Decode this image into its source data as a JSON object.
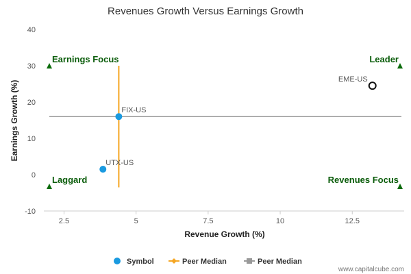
{
  "chart_data": {
    "type": "scatter",
    "title": "Revenues Growth Versus Earnings Growth",
    "xlabel": "Revenue Growth (%)",
    "ylabel": "Earnings Growth (%)",
    "xlim": [
      1.8,
      14.3
    ],
    "ylim": [
      -10,
      40
    ],
    "x_ticks": [
      2.5,
      5,
      7.5,
      10,
      12.5
    ],
    "x_tick_labels": [
      "2.5",
      "5",
      "7.5",
      "10",
      "12.5"
    ],
    "y_ticks": [
      -10,
      0,
      10,
      20,
      30,
      40
    ],
    "y_tick_labels": [
      "-10",
      "0",
      "10",
      "20",
      "30",
      "40"
    ],
    "grid": false,
    "points": [
      {
        "label": "EME-US",
        "x": 13.2,
        "y": 24.5,
        "style": "hollow"
      },
      {
        "label": "FIX-US",
        "x": 4.4,
        "y": 16,
        "style": "filled"
      },
      {
        "label": "UTX-US",
        "x": 3.85,
        "y": 1.5,
        "style": "filled"
      }
    ],
    "peer_median_x": 4.4,
    "peer_median_y": 16,
    "quadrants": {
      "top_left": "Earnings Focus",
      "top_right": "Leader",
      "bottom_left": "Laggard",
      "bottom_right": "Revenues Focus"
    },
    "legend": {
      "placement": "bottom",
      "items": [
        {
          "label": "Symbol",
          "marker": "circle",
          "color": "#1a9ae0"
        },
        {
          "label": "Peer Median",
          "marker": "diamond-line",
          "color": "#f5a623"
        },
        {
          "label": "Peer Median",
          "marker": "square-line",
          "color": "#999999"
        }
      ]
    },
    "colors": {
      "point": "#1a9ae0",
      "x_median": "#f5a623",
      "y_median": "#999999",
      "quadrant": "#0a6b0a",
      "axis": "#cccccc"
    }
  },
  "credit": "www.capitalcube.com"
}
